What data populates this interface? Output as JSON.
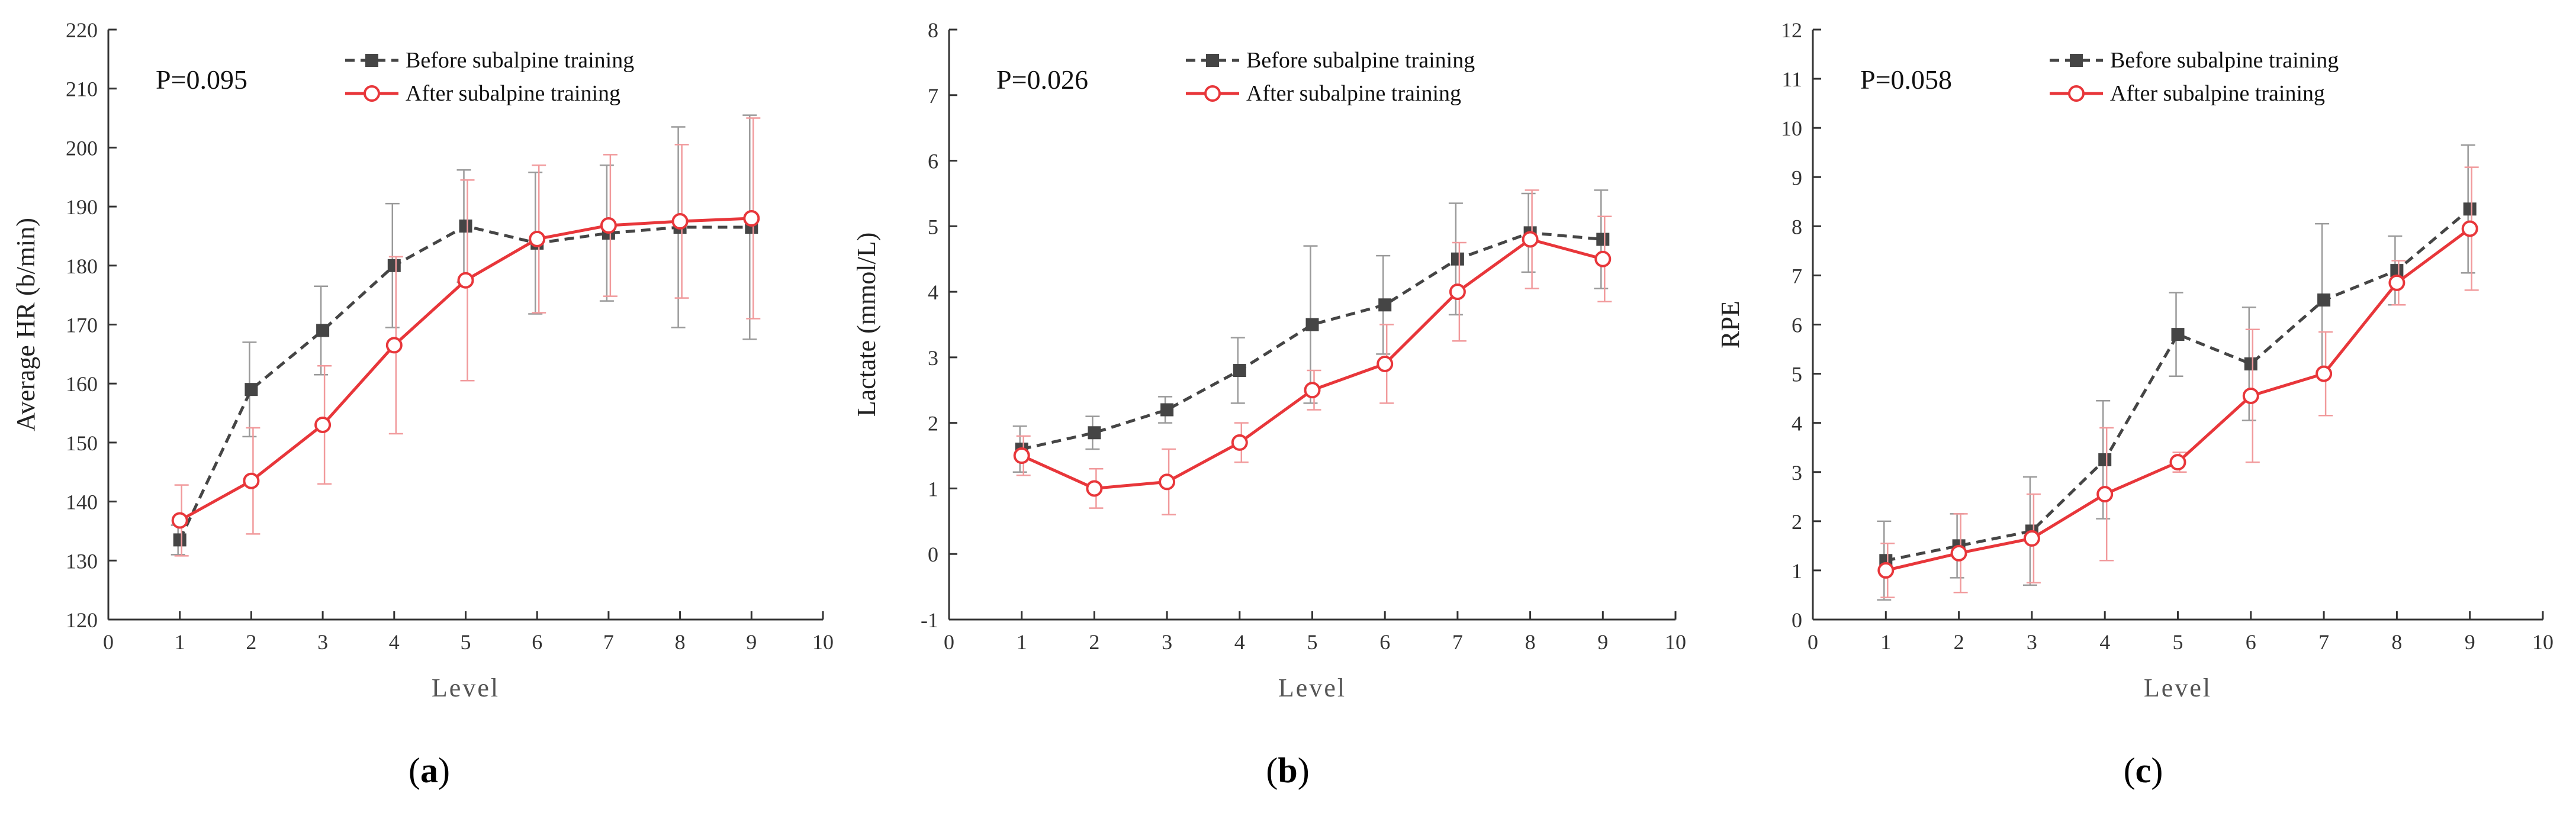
{
  "colors": {
    "before": "#454545",
    "after": "#e8363a",
    "axis": "#333333"
  },
  "legend": {
    "before": "Before subalpine training",
    "after": "After subalpine training"
  },
  "chart_data": [
    {
      "type": "line",
      "panel": "a",
      "p_value": "P=0.095",
      "xlabel": "Level",
      "ylabel": "Average HR (b/min)",
      "xlim": [
        0,
        10
      ],
      "ylim": [
        120,
        220
      ],
      "xticks": [
        0,
        1,
        2,
        3,
        4,
        5,
        6,
        7,
        8,
        9,
        10
      ],
      "yticks": [
        120,
        130,
        140,
        150,
        160,
        170,
        180,
        190,
        200,
        210,
        220
      ],
      "x": [
        1,
        2,
        3,
        4,
        5,
        6,
        7,
        8,
        9
      ],
      "series": [
        {
          "name": "Before subalpine training",
          "key": "before",
          "values": [
            133.5,
            159,
            169,
            180,
            186.7,
            183.8,
            185.5,
            186.5,
            186.5
          ],
          "err": [
            2.5,
            8,
            7.5,
            10.5,
            9.5,
            12,
            11.5,
            17,
            19
          ]
        },
        {
          "name": "After subalpine training",
          "key": "after",
          "values": [
            136.8,
            143.5,
            153,
            166.5,
            177.5,
            184.5,
            186.8,
            187.5,
            188
          ],
          "err": [
            6,
            9,
            10,
            15,
            17,
            12.5,
            12,
            13,
            17
          ]
        }
      ]
    },
    {
      "type": "line",
      "panel": "b",
      "p_value": "P=0.026",
      "xlabel": "Level",
      "ylabel": "Lactate (mmol/L)",
      "xlim": [
        0,
        10
      ],
      "ylim": [
        -1,
        8
      ],
      "xticks": [
        0,
        1,
        2,
        3,
        4,
        5,
        6,
        7,
        8,
        9,
        10
      ],
      "yticks": [
        -1,
        0,
        1,
        2,
        3,
        4,
        5,
        6,
        7,
        8
      ],
      "x": [
        1,
        2,
        3,
        4,
        5,
        6,
        7,
        8,
        9
      ],
      "series": [
        {
          "name": "Before subalpine training",
          "key": "before",
          "values": [
            1.6,
            1.85,
            2.2,
            2.8,
            3.5,
            3.8,
            4.5,
            4.9,
            4.8
          ],
          "err": [
            0.35,
            0.25,
            0.2,
            0.5,
            1.2,
            0.75,
            0.85,
            0.6,
            0.75
          ]
        },
        {
          "name": "After subalpine training",
          "key": "after",
          "values": [
            1.5,
            1.0,
            1.1,
            1.7,
            2.5,
            2.9,
            4.0,
            4.8,
            4.5
          ],
          "err": [
            0.3,
            0.3,
            0.5,
            0.3,
            0.3,
            0.6,
            0.75,
            0.75,
            0.65
          ]
        }
      ]
    },
    {
      "type": "line",
      "panel": "c",
      "p_value": "P=0.058",
      "xlabel": "Level",
      "ylabel": "RPE",
      "xlim": [
        0,
        10
      ],
      "ylim": [
        0,
        12
      ],
      "xticks": [
        0,
        1,
        2,
        3,
        4,
        5,
        6,
        7,
        8,
        9,
        10
      ],
      "yticks": [
        0,
        1,
        2,
        3,
        4,
        5,
        6,
        7,
        8,
        9,
        10,
        11,
        12
      ],
      "x": [
        1,
        2,
        3,
        4,
        5,
        6,
        7,
        8,
        9
      ],
      "series": [
        {
          "name": "Before subalpine training",
          "key": "before",
          "values": [
            1.2,
            1.5,
            1.8,
            3.25,
            5.8,
            5.2,
            6.5,
            7.1,
            8.35
          ],
          "err": [
            0.8,
            0.65,
            1.1,
            1.2,
            0.85,
            1.15,
            1.55,
            0.7,
            1.3
          ]
        },
        {
          "name": "After subalpine training",
          "key": "after",
          "values": [
            1.0,
            1.35,
            1.65,
            2.55,
            3.2,
            4.55,
            5.0,
            6.85,
            7.95
          ],
          "err": [
            0.55,
            0.8,
            0.9,
            1.35,
            0.2,
            1.35,
            0.85,
            0.45,
            1.25
          ]
        }
      ]
    }
  ],
  "captions": [
    {
      "open": "(",
      "letter": "a",
      "close": ")"
    },
    {
      "open": "(",
      "letter": "b",
      "close": ")"
    },
    {
      "open": "(",
      "letter": "c",
      "close": ")"
    }
  ]
}
